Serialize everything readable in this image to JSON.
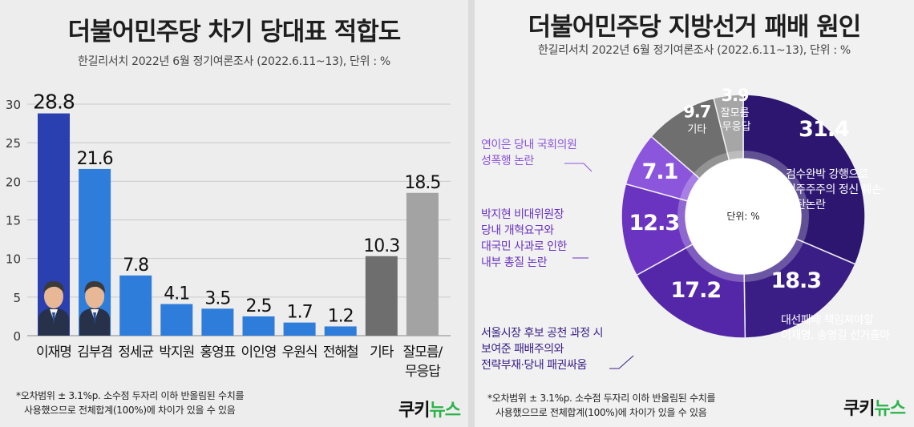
{
  "left": {
    "title": "더불어민주당 차기 당대표 적합도",
    "subtitle": "한길리서치 2022년 6월 정기여론조사 (2022.6.11~13), 단위 : %",
    "footnote_line1": "*오차범위 ± 3.1%p. 소수점 두자리 이하 반올림된 수치를",
    "footnote_line2": "사용했으므로 전체합계(100%)에 차이가 있을 수 있음",
    "brand_main": "쿠키",
    "brand_accent": "뉴스"
  },
  "right": {
    "title": "더불어민주당 지방선거 패배 원인",
    "subtitle": "한길리서치 2022년 6월 정기여론조사 (2022.6.11~13), 단위 : %",
    "center_label": "단위: %",
    "footnote_line1": "*오차범위 ± 3.1%p. 소수점 두자리 이하 반올림된 수치를",
    "footnote_line2": "사용했으므로 전체합계(100%)에 차이가 있을 수 있음",
    "brand_main": "쿠키",
    "brand_accent": "뉴스"
  },
  "colors": {
    "bar_dark": "#2a3fb0",
    "bar_blue": "#2f7ddb",
    "bar_gray_dark": "#6e6e6e",
    "bar_gray_light": "#a3a3a3",
    "donut_1": "#2c1670",
    "donut_2": "#3a1e86",
    "donut_3": "#5327a8",
    "donut_4": "#6a34c1",
    "donut_5": "#8b55dc",
    "donut_6": "#6f6f6f",
    "donut_7": "#a6a6a6"
  },
  "chart_data": [
    {
      "type": "bar",
      "title": "더불어민주당 차기 당대표 적합도",
      "categories": [
        "이재명",
        "김부겸",
        "정세균",
        "박지원",
        "홍영표",
        "이인영",
        "우원식",
        "전해철",
        "기타",
        "잘모름/ 무응답"
      ],
      "values": [
        28.8,
        21.6,
        7.8,
        4.1,
        3.5,
        2.5,
        1.7,
        1.2,
        10.3,
        18.5
      ],
      "value_labels": [
        "28.8",
        "21.6",
        "7.8",
        "4.1",
        "3.5",
        "2.5",
        "1.7",
        "1.2",
        "10.3",
        "18.5"
      ],
      "category_line1": [
        "이재명",
        "김부겸",
        "정세균",
        "박지원",
        "홍영표",
        "이인영",
        "우원식",
        "전해철",
        "기타",
        "잘모름/"
      ],
      "category_line2": [
        "",
        "",
        "",
        "",
        "",
        "",
        "",
        "",
        "",
        "무응답"
      ],
      "yticks": [
        0,
        5,
        10,
        15,
        20,
        25,
        30
      ],
      "ylim": [
        0,
        30
      ],
      "grid": true,
      "xlabel": "",
      "ylabel": ""
    },
    {
      "type": "pie",
      "title": "더불어민주당 지방선거 패배 원인",
      "categories": [
        "검수완박 강행으로 민주주주의 정신 훼손·방탄논란",
        "대선패배 책임져야할 이재명, 송영길 선거출마",
        "서울시장 후보 공천 과정 시 보여준 패배주의와 전략부재·당내 패권싸움",
        "박지현 비대위원장 당내 개혁요구와 대국민 사과로 인한 내부 총질 논란",
        "연이은 당내 국회의원 성폭행 논란",
        "기타",
        "잘모름·무응답"
      ],
      "values": [
        31.4,
        18.3,
        17.2,
        12.3,
        7.1,
        9.7,
        3.9
      ],
      "value_labels": [
        "31.4",
        "18.3",
        "17.2",
        "12.3",
        "7.1",
        "9.7",
        "3.9"
      ],
      "inner_labels": [
        "",
        "",
        "",
        "",
        "",
        "기타",
        "잘모름"
      ],
      "inner_labels2": [
        "",
        "",
        "",
        "",
        "",
        "",
        "·무응답"
      ],
      "callouts": [
        [
          "검수완박 강행으로",
          "민주주주의 정신 훼손·",
          "방탄논란"
        ],
        [
          "대선패배 책임져야할",
          "이재명, 송영길 선거출마"
        ],
        [
          "서울시장 후보 공천 과정 시",
          "보여준 패배주의와",
          "전략부재·당내 패권싸움"
        ],
        [
          "박지현 비대위원장",
          "당내 개혁요구와",
          "대국민 사과로 인한",
          "내부 총질 논란"
        ],
        [
          "연이은 당내 국회의원",
          "성폭행 논란"
        ],
        [],
        []
      ]
    }
  ]
}
